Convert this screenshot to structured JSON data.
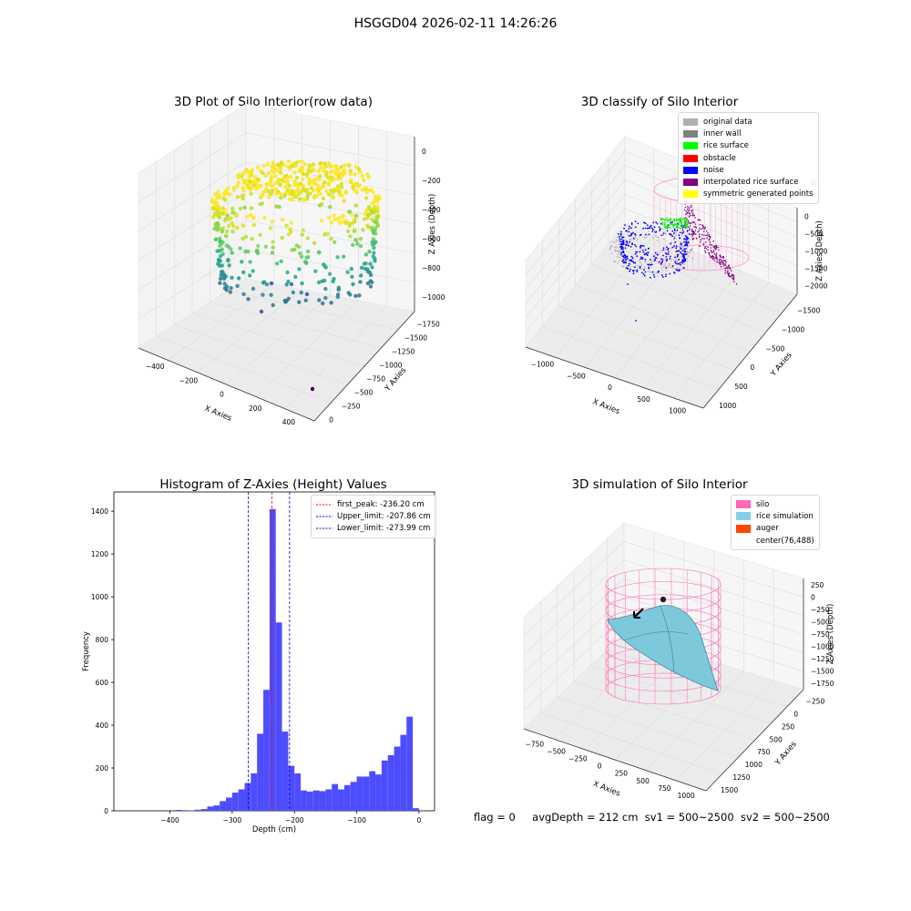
{
  "figure_title": "HSGGD04 2026-02-11 14:26:26",
  "footer": {
    "flag": "flag = 0",
    "avgDepth": "avgDepth = 212 cm",
    "sv1": "sv1 = 500~2500",
    "sv2": "sv2 = 500~2500"
  },
  "colors": {
    "histogram_bar": "#4d4dff",
    "peak_line": "#ff0000",
    "limit_line": "#0000cc",
    "silo_wire": "#ff69b4",
    "rice_surface": "#7ec8dc",
    "pane": "#f2f2f2"
  },
  "chart_data": [
    {
      "type": "scatter",
      "title": "3D Plot of Silo Interior(row data)",
      "xlabel": "X Axies",
      "ylabel": "Y Axies",
      "zlabel": "Z Axies (Depth)",
      "x_ticks": [
        "−400",
        "−200",
        "0",
        "200",
        "400"
      ],
      "y_ticks": [
        "0",
        "−250",
        "−500",
        "−750",
        "−1000",
        "−1250",
        "−1500",
        "−1750"
      ],
      "z_ticks": [
        "0",
        "−200",
        "−400",
        "−600",
        "−800",
        "−1000"
      ],
      "colormap": "viridis"
    },
    {
      "type": "scatter",
      "title": "3D classify of Silo Interior",
      "xlabel": "X Axies",
      "ylabel": "Y Axies",
      "zlabel": "Z Axies (Depth)",
      "x_ticks": [
        "−1000",
        "−500",
        "0",
        "500",
        "1000"
      ],
      "y_ticks": [
        "1000",
        "500",
        "0",
        "−500",
        "−1000",
        "−1500"
      ],
      "z_ticks": [
        "0",
        "−500",
        "−1000",
        "−1500",
        "−2000"
      ],
      "z_top_partial": "00",
      "legend": [
        {
          "label": "original data",
          "color": "#b0b0b0"
        },
        {
          "label": "inner wall",
          "color": "#808080"
        },
        {
          "label": "rice surface",
          "color": "#00ff00"
        },
        {
          "label": "obstacle",
          "color": "#ff0000"
        },
        {
          "label": "noise",
          "color": "#0000ff"
        },
        {
          "label": "interpolated rice surface",
          "color": "#800080"
        },
        {
          "label": "symmetric generated points",
          "color": "#ffff00"
        }
      ]
    },
    {
      "type": "bar",
      "title": "Histogram of Z-Axies (Height) Values",
      "xlabel": "Depth (cm)",
      "ylabel": "Frequency",
      "xlim": [
        -490,
        25
      ],
      "ylim": [
        0,
        1490
      ],
      "x_ticks": [
        -400,
        -300,
        -200,
        -100,
        0
      ],
      "y_ticks": [
        0,
        200,
        400,
        600,
        800,
        1000,
        1200,
        1400
      ],
      "bin_width": 10,
      "bin_starts": [
        -450,
        -440,
        -430,
        -420,
        -410,
        -400,
        -390,
        -380,
        -370,
        -360,
        -350,
        -340,
        -330,
        -320,
        -310,
        -300,
        -290,
        -280,
        -270,
        -260,
        -250,
        -240,
        -230,
        -220,
        -210,
        -200,
        -190,
        -180,
        -170,
        -160,
        -150,
        -140,
        -130,
        -120,
        -110,
        -100,
        -90,
        -80,
        -70,
        -60,
        -50,
        -40,
        -30,
        -20,
        -10,
        0
      ],
      "counts": [
        0,
        0,
        0,
        0,
        0,
        0,
        4,
        0,
        2,
        5,
        8,
        20,
        25,
        45,
        62,
        85,
        100,
        130,
        175,
        360,
        565,
        1410,
        880,
        370,
        210,
        175,
        95,
        90,
        95,
        92,
        100,
        125,
        100,
        120,
        135,
        160,
        160,
        185,
        170,
        235,
        260,
        300,
        355,
        440,
        12,
        0
      ],
      "lines": [
        {
          "label": "first_peak: -236.20 cm",
          "value": -236.2,
          "color": "#ff0000"
        },
        {
          "label": "Upper_limit: -207.86 cm",
          "value": -207.86,
          "color": "#0000cc"
        },
        {
          "label": "Lower_limit: -273.99 cm",
          "value": -273.99,
          "color": "#0000cc"
        }
      ]
    },
    {
      "type": "surface",
      "title": "3D simulation of Silo Interior",
      "xlabel": "X Axies",
      "ylabel": "Y Axies",
      "zlabel": "Z Axies (Depth)",
      "x_ticks": [
        "−750",
        "−500",
        "−250",
        "0",
        "250",
        "500",
        "750",
        "1000"
      ],
      "y_ticks": [
        "1500",
        "1250",
        "1000",
        "750",
        "500",
        "250",
        "0",
        "−250"
      ],
      "z_ticks": [
        "250",
        "0",
        "−250",
        "−500",
        "−750",
        "−1000",
        "−1250",
        "−1500",
        "−1750"
      ],
      "legend": [
        {
          "label": "silo",
          "color": "#ff69b4"
        },
        {
          "label": "rice simulation",
          "color": "#87ceeb"
        },
        {
          "label": "auger",
          "color": "#ff4500"
        },
        {
          "label": "center(76,488)",
          "color": "#ffffff"
        }
      ]
    }
  ]
}
